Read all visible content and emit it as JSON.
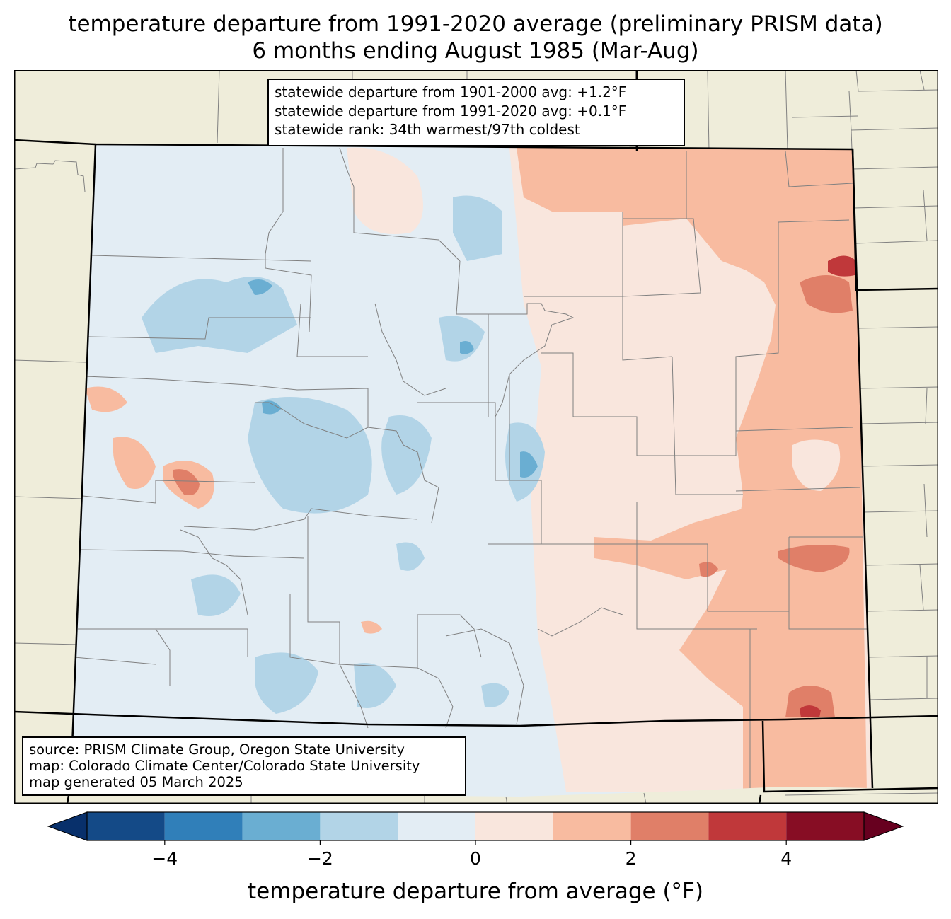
{
  "title": {
    "line1": "temperature departure from 1991-2020 average (preliminary PRISM data)",
    "line2": "6 months ending August 1985 (Mar-Aug)"
  },
  "stats": {
    "line1": "statewide departure from 1901-2000 avg: +1.2°F",
    "line2": "statewide departure from 1991-2020 avg: +0.1°F",
    "line3": "statewide rank: 34th warmest/97th coldest"
  },
  "source": {
    "line1": "source: PRISM Climate Group, Oregon State University",
    "line2": "map: Colorado Climate Center/Colorado State University",
    "line3": "map generated 05 March 2025"
  },
  "colors": {
    "land": "#efedda",
    "border": "#000000",
    "county": "#808080",
    "bins": [
      "#08306b",
      "#144a87",
      "#307fb9",
      "#6aaed2",
      "#b2d4e7",
      "#e3edf4",
      "#f9e6dd",
      "#f8bba0",
      "#e07f68",
      "#c0383a",
      "#870d24",
      "#67001f"
    ]
  },
  "colorbar": {
    "ticks": [
      "−4",
      "−2",
      "0",
      "2",
      "4"
    ],
    "tick_values": [
      -4,
      -2,
      0,
      2,
      4
    ],
    "bounds": [
      -5,
      -4,
      -3,
      -2,
      -1,
      0,
      1,
      2,
      3,
      4,
      5
    ],
    "extend": "both",
    "label": "temperature departure from average (°F)"
  }
}
